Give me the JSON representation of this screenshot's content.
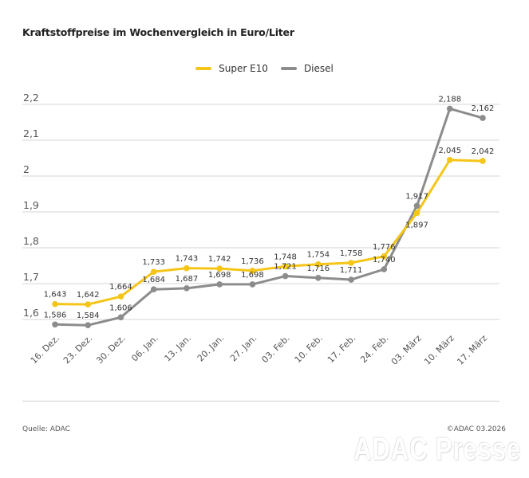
{
  "title": "Kraftstoffpreise im Wochenvergleich in Euro/Liter",
  "footer": {
    "source": "Quelle: ADAC",
    "copyright": "©ADAC 03.2026",
    "watermark": "ADAC Presse"
  },
  "colors": {
    "super_e10": "#f5c518",
    "diesel": "#8c8c8c",
    "grid": "#d6d6d6",
    "axis_text": "#555555",
    "label_text": "#333333"
  },
  "chart_data": {
    "type": "line",
    "title": "Kraftstoffpreise im Wochenvergleich in Euro/Liter",
    "xlabel": "",
    "ylabel": "",
    "ylim": [
      1.6,
      2.2
    ],
    "yticks": [
      1.6,
      1.7,
      1.8,
      1.9,
      2.0,
      2.1,
      2.2
    ],
    "ytick_labels": [
      "1,6",
      "1,7",
      "1,8",
      "1,9",
      "2",
      "2,1",
      "2,2"
    ],
    "grid": true,
    "legend_position": "top-center",
    "categories": [
      "16. Dez.",
      "23. Dez.",
      "30. Dez.",
      "06. Jan.",
      "13. Jan.",
      "20. Jan.",
      "27. Jan.",
      "03. Feb.",
      "10. Feb.",
      "17. Feb.",
      "24. Feb.",
      "03. März",
      "10. März",
      "17. März"
    ],
    "series": [
      {
        "name": "Super E10",
        "key": "super_e10",
        "values": [
          1.643,
          1.642,
          1.664,
          1.733,
          1.743,
          1.742,
          1.736,
          1.748,
          1.754,
          1.758,
          1.776,
          1.897,
          2.045,
          2.042
        ],
        "labels": [
          "1,643",
          "1,642",
          "1,664",
          "1,733",
          "1,743",
          "1,742",
          "1,736",
          "1,748",
          "1,754",
          "1,758",
          "1,776",
          "1,897",
          "2,045",
          "2,042"
        ],
        "label_side": [
          "above",
          "above",
          "above",
          "above",
          "above",
          "above",
          "above",
          "above",
          "above",
          "above",
          "above",
          "below",
          "above",
          "above"
        ]
      },
      {
        "name": "Diesel",
        "key": "diesel",
        "values": [
          1.586,
          1.584,
          1.606,
          1.684,
          1.687,
          1.698,
          1.698,
          1.721,
          1.716,
          1.711,
          1.74,
          1.917,
          2.188,
          2.162
        ],
        "labels": [
          "1,586",
          "1,584",
          "1,606",
          "1,684",
          "1,687",
          "1,698",
          "1,698",
          "1,721",
          "1,716",
          "1,711",
          "1,740",
          "1,917",
          "2,188",
          "2,162"
        ],
        "label_side": [
          "above",
          "above",
          "above",
          "above",
          "above",
          "above",
          "above",
          "above",
          "above",
          "above",
          "above",
          "above",
          "above",
          "above"
        ]
      }
    ]
  }
}
